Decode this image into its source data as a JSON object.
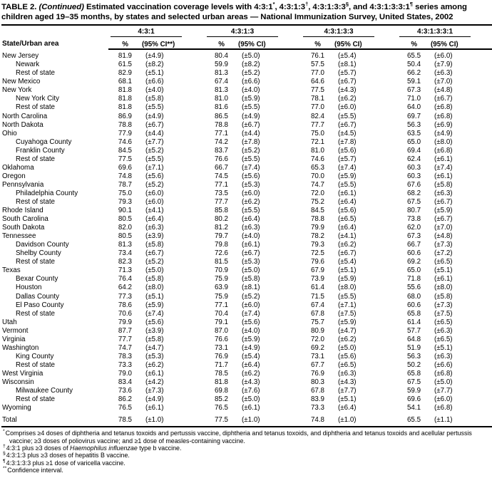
{
  "colors": {
    "text": "#000000",
    "background": "#ffffff"
  },
  "title": {
    "label": "TABLE 2.",
    "continued": " (Continued)",
    "part1": " Estimated vaccination coverage levels with 4:3:1",
    "sup1": "*",
    "part2": ", 4:3:1:3",
    "sup2": "†",
    "part3": ", 4:3:1:3:3",
    "sup3": "§",
    "part4": ", and 4:3:1:3:3:1",
    "sup4": "¶",
    "part5": " series among children aged 19–35 months, by states and selected urban areas — National Immunization Survey, United States, 2002"
  },
  "table": {
    "area_header": "State/Urban area",
    "groups": [
      {
        "series": "4:3:1",
        "pct_header": "%",
        "ci_header": "(95% CI**)"
      },
      {
        "series": "4:3:1:3",
        "pct_header": "%",
        "ci_header": "(95% CI)"
      },
      {
        "series": "4:3:1:3:3",
        "pct_header": "%",
        "ci_header": "(95% CI)"
      },
      {
        "series": "4:3:1:3:3:1",
        "pct_header": "%",
        "ci_header": "(95% CI)"
      }
    ],
    "rows": [
      {
        "area": "New Jersey",
        "indent": 0,
        "total": false,
        "v": [
          "81.9",
          "(±4.9)",
          "80.4",
          "(±5.0)",
          "76.1",
          "(±5.4)",
          "65.5",
          "(±6.0)"
        ]
      },
      {
        "area": "Newark",
        "indent": 1,
        "total": false,
        "v": [
          "61.5",
          "(±8.2)",
          "59.9",
          "(±8.2)",
          "57.5",
          "(±8.1)",
          "50.4",
          "(±7.9)"
        ]
      },
      {
        "area": "Rest of state",
        "indent": 1,
        "total": false,
        "v": [
          "82.9",
          "(±5.1)",
          "81.3",
          "(±5.2)",
          "77.0",
          "(±5.7)",
          "66.2",
          "(±6.3)"
        ]
      },
      {
        "area": "New Mexico",
        "indent": 0,
        "total": false,
        "v": [
          "68.1",
          "(±6.6)",
          "67.4",
          "(±6.6)",
          "64.6",
          "(±6.7)",
          "59.1",
          "(±7.0)"
        ]
      },
      {
        "area": "New York",
        "indent": 0,
        "total": false,
        "v": [
          "81.8",
          "(±4.0)",
          "81.3",
          "(±4.0)",
          "77.5",
          "(±4.3)",
          "67.3",
          "(±4.8)"
        ]
      },
      {
        "area": "New York City",
        "indent": 1,
        "total": false,
        "v": [
          "81.8",
          "(±5.8)",
          "81.0",
          "(±5.9)",
          "78.1",
          "(±6.2)",
          "71.0",
          "(±6.7)"
        ]
      },
      {
        "area": "Rest of state",
        "indent": 1,
        "total": false,
        "v": [
          "81.8",
          "(±5.5)",
          "81.6",
          "(±5.5)",
          "77.0",
          "(±6.0)",
          "64.0",
          "(±6.8)"
        ]
      },
      {
        "area": "North Carolina",
        "indent": 0,
        "total": false,
        "v": [
          "86.9",
          "(±4.9)",
          "86.5",
          "(±4.9)",
          "82.4",
          "(±5.5)",
          "69.7",
          "(±6.8)"
        ]
      },
      {
        "area": "North Dakota",
        "indent": 0,
        "total": false,
        "v": [
          "78.8",
          "(±6.7)",
          "78.8",
          "(±6.7)",
          "77.7",
          "(±6.7)",
          "56.3",
          "(±6.9)"
        ]
      },
      {
        "area": "Ohio",
        "indent": 0,
        "total": false,
        "v": [
          "77.9",
          "(±4.4)",
          "77.1",
          "(±4.4)",
          "75.0",
          "(±4.5)",
          "63.5",
          "(±4.9)"
        ]
      },
      {
        "area": "Cuyahoga County",
        "indent": 1,
        "total": false,
        "v": [
          "74.6",
          "(±7.7)",
          "74.2",
          "(±7.8)",
          "72.1",
          "(±7.8)",
          "65.0",
          "(±8.0)"
        ]
      },
      {
        "area": "Franklin County",
        "indent": 1,
        "total": false,
        "v": [
          "84.5",
          "(±5.2)",
          "83.7",
          "(±5.2)",
          "81.0",
          "(±5.6)",
          "69.4",
          "(±6.8)"
        ]
      },
      {
        "area": "Rest of state",
        "indent": 1,
        "total": false,
        "v": [
          "77.5",
          "(±5.5)",
          "76.6",
          "(±5.5)",
          "74.6",
          "(±5.7)",
          "62.4",
          "(±6.1)"
        ]
      },
      {
        "area": "Oklahoma",
        "indent": 0,
        "total": false,
        "v": [
          "69.6",
          "(±7.1)",
          "66.7",
          "(±7.4)",
          "65.3",
          "(±7.4)",
          "60.3",
          "(±7.4)"
        ]
      },
      {
        "area": "Oregon",
        "indent": 0,
        "total": false,
        "v": [
          "74.8",
          "(±5.6)",
          "74.5",
          "(±5.6)",
          "70.0",
          "(±5.9)",
          "60.3",
          "(±6.1)"
        ]
      },
      {
        "area": "Pennsylvania",
        "indent": 0,
        "total": false,
        "v": [
          "78.7",
          "(±5.2)",
          "77.1",
          "(±5.3)",
          "74.7",
          "(±5.5)",
          "67.6",
          "(±5.8)"
        ]
      },
      {
        "area": "Philadelphia County",
        "indent": 1,
        "total": false,
        "v": [
          "75.0",
          "(±6.0)",
          "73.5",
          "(±6.0)",
          "72.0",
          "(±6.1)",
          "68.2",
          "(±6.3)"
        ]
      },
      {
        "area": "Rest of state",
        "indent": 1,
        "total": false,
        "v": [
          "79.3",
          "(±6.0)",
          "77.7",
          "(±6.2)",
          "75.2",
          "(±6.4)",
          "67.5",
          "(±6.7)"
        ]
      },
      {
        "area": "Rhode Island",
        "indent": 0,
        "total": false,
        "v": [
          "90.1",
          "(±4.1)",
          "85.8",
          "(±5.5)",
          "84.5",
          "(±5.6)",
          "80.7",
          "(±5.9)"
        ]
      },
      {
        "area": "South Carolina",
        "indent": 0,
        "total": false,
        "v": [
          "80.5",
          "(±6.4)",
          "80.2",
          "(±6.4)",
          "78.8",
          "(±6.5)",
          "73.8",
          "(±6.7)"
        ]
      },
      {
        "area": "South Dakota",
        "indent": 0,
        "total": false,
        "v": [
          "82.0",
          "(±6.3)",
          "81.2",
          "(±6.3)",
          "79.9",
          "(±6.4)",
          "62.0",
          "(±7.0)"
        ]
      },
      {
        "area": "Tennessee",
        "indent": 0,
        "total": false,
        "v": [
          "80.5",
          "(±3.9)",
          "79.7",
          "(±4.0)",
          "78.2",
          "(±4.1)",
          "67.3",
          "(±4.8)"
        ]
      },
      {
        "area": "Davidson County",
        "indent": 1,
        "total": false,
        "v": [
          "81.3",
          "(±5.8)",
          "79.8",
          "(±6.1)",
          "79.3",
          "(±6.2)",
          "66.7",
          "(±7.3)"
        ]
      },
      {
        "area": "Shelby County",
        "indent": 1,
        "total": false,
        "v": [
          "73.4",
          "(±6.7)",
          "72.6",
          "(±6.7)",
          "72.5",
          "(±6.7)",
          "60.6",
          "(±7.2)"
        ]
      },
      {
        "area": "Rest of state",
        "indent": 1,
        "total": false,
        "v": [
          "82.3",
          "(±5.2)",
          "81.5",
          "(±5.3)",
          "79.6",
          "(±5.4)",
          "69.2",
          "(±6.5)"
        ]
      },
      {
        "area": "Texas",
        "indent": 0,
        "total": false,
        "v": [
          "71.3",
          "(±5.0)",
          "70.9",
          "(±5.0)",
          "67.9",
          "(±5.1)",
          "65.0",
          "(±5.1)"
        ]
      },
      {
        "area": "Bexar County",
        "indent": 1,
        "total": false,
        "v": [
          "76.4",
          "(±5.8)",
          "75.9",
          "(±5.8)",
          "73.9",
          "(±5.9)",
          "71.8",
          "(±6.1)"
        ]
      },
      {
        "area": "Houston",
        "indent": 1,
        "total": false,
        "v": [
          "64.2",
          "(±8.0)",
          "63.9",
          "(±8.1)",
          "61.4",
          "(±8.0)",
          "55.6",
          "(±8.0)"
        ]
      },
      {
        "area": "Dallas County",
        "indent": 1,
        "total": false,
        "v": [
          "77.3",
          "(±5.1)",
          "75.9",
          "(±5.2)",
          "71.5",
          "(±5.5)",
          "68.0",
          "(±5.8)"
        ]
      },
      {
        "area": "El Paso County",
        "indent": 1,
        "total": false,
        "v": [
          "78.6",
          "(±5.9)",
          "77.1",
          "(±6.0)",
          "67.4",
          "(±7.1)",
          "60.6",
          "(±7.3)"
        ]
      },
      {
        "area": "Rest of state",
        "indent": 1,
        "total": false,
        "v": [
          "70.6",
          "(±7.4)",
          "70.4",
          "(±7.4)",
          "67.8",
          "(±7.5)",
          "65.8",
          "(±7.5)"
        ]
      },
      {
        "area": "Utah",
        "indent": 0,
        "total": false,
        "v": [
          "79.9",
          "(±5.6)",
          "79.1",
          "(±5.6)",
          "75.7",
          "(±5.9)",
          "61.4",
          "(±6.5)"
        ]
      },
      {
        "area": "Vermont",
        "indent": 0,
        "total": false,
        "v": [
          "87.7",
          "(±3.9)",
          "87.0",
          "(±4.0)",
          "80.9",
          "(±4.7)",
          "57.7",
          "(±6.3)"
        ]
      },
      {
        "area": "Virginia",
        "indent": 0,
        "total": false,
        "v": [
          "77.7",
          "(±5.8)",
          "76.6",
          "(±5.9)",
          "72.0",
          "(±6.2)",
          "64.8",
          "(±6.5)"
        ]
      },
      {
        "area": "Washington",
        "indent": 0,
        "total": false,
        "v": [
          "74.7",
          "(±4.7)",
          "73.1",
          "(±4.9)",
          "69.2",
          "(±5.0)",
          "51.9",
          "(±5.1)"
        ]
      },
      {
        "area": "King County",
        "indent": 1,
        "total": false,
        "v": [
          "78.3",
          "(±5.3)",
          "76.9",
          "(±5.4)",
          "73.1",
          "(±5.6)",
          "56.3",
          "(±6.3)"
        ]
      },
      {
        "area": "Rest of state",
        "indent": 1,
        "total": false,
        "v": [
          "73.3",
          "(±6.2)",
          "71.7",
          "(±6.4)",
          "67.7",
          "(±6.5)",
          "50.2",
          "(±6.6)"
        ]
      },
      {
        "area": "West Virginia",
        "indent": 0,
        "total": false,
        "v": [
          "79.0",
          "(±6.1)",
          "78.5",
          "(±6.2)",
          "76.9",
          "(±6.3)",
          "65.8",
          "(±6.8)"
        ]
      },
      {
        "area": "Wisconsin",
        "indent": 0,
        "total": false,
        "v": [
          "83.4",
          "(±4.2)",
          "81.8",
          "(±4.3)",
          "80.3",
          "(±4.3)",
          "67.5",
          "(±5.0)"
        ]
      },
      {
        "area": "Milwaukee County",
        "indent": 1,
        "total": false,
        "v": [
          "73.6",
          "(±7.3)",
          "69.8",
          "(±7.6)",
          "67.8",
          "(±7.7)",
          "59.9",
          "(±7.7)"
        ]
      },
      {
        "area": "Rest of state",
        "indent": 1,
        "total": false,
        "v": [
          "86.2",
          "(±4.9)",
          "85.2",
          "(±5.0)",
          "83.9",
          "(±5.1)",
          "69.6",
          "(±6.0)"
        ]
      },
      {
        "area": "Wyoming",
        "indent": 0,
        "total": false,
        "v": [
          "76.5",
          "(±6.1)",
          "76.5",
          "(±6.1)",
          "73.3",
          "(±6.4)",
          "54.1",
          "(±6.8)"
        ]
      },
      {
        "area": "Total",
        "indent": 0,
        "total": true,
        "v": [
          "78.5",
          "(±1.0)",
          "77.5",
          "(±1.0)",
          "74.8",
          "(±1.0)",
          "65.5",
          "(±1.1)"
        ]
      }
    ]
  },
  "footnotes": {
    "star_marker": "*",
    "star_text": "Comprises ≥4 doses of diphtheria and tetanus toxoids and pertussis vaccine, diphtheria and tetanus toxoids, and diphtheria and tetanus toxoids and acellular pertussis vaccine; ≥3 doses of poliovirus vaccine; and ≥1 dose of measles-containing vaccine.",
    "dagger_marker": "†",
    "dagger_pre": "4:3:1 plus ≥3 doses of ",
    "dagger_italic": "Haemophilus influenzae",
    "dagger_post": " type b vaccine.",
    "section_marker": "§",
    "section_text": "4:3:1:3 plus ≥3 doses of hepatitis B vaccine.",
    "pilcrow_marker": "¶",
    "pilcrow_text": "4:3:1:3:3 plus ≥1 dose of varicella vaccine.",
    "dstar_marker": "**",
    "dstar_text": "Confidence interval."
  }
}
